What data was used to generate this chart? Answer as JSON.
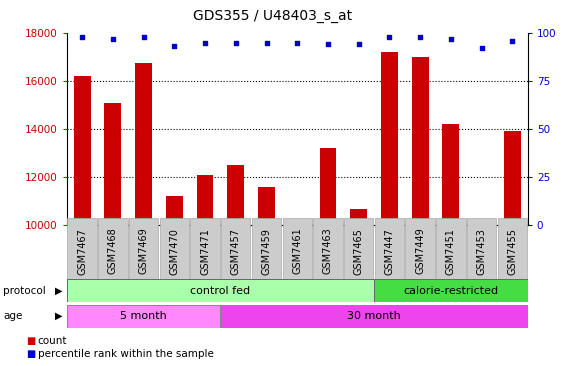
{
  "title": "GDS355 / U48403_s_at",
  "samples": [
    "GSM7467",
    "GSM7468",
    "GSM7469",
    "GSM7470",
    "GSM7471",
    "GSM7457",
    "GSM7459",
    "GSM7461",
    "GSM7463",
    "GSM7465",
    "GSM7447",
    "GSM7449",
    "GSM7451",
    "GSM7453",
    "GSM7455"
  ],
  "counts": [
    16200,
    15100,
    16750,
    11200,
    12100,
    12500,
    11600,
    10150,
    13200,
    10650,
    17200,
    17000,
    14200,
    10150,
    13900
  ],
  "percentile_ranks": [
    98,
    97,
    98,
    93,
    95,
    95,
    95,
    95,
    94,
    94,
    98,
    98,
    97,
    92,
    96
  ],
  "ylim_left": [
    10000,
    18000
  ],
  "ylim_right": [
    0,
    100
  ],
  "yticks_left": [
    10000,
    12000,
    14000,
    16000,
    18000
  ],
  "yticks_right": [
    0,
    25,
    50,
    75,
    100
  ],
  "bar_color": "#cc0000",
  "dot_color": "#0000cc",
  "bar_width": 0.55,
  "protocol_groups": [
    {
      "label": "control fed",
      "start": 0,
      "end": 10,
      "color": "#aaffaa"
    },
    {
      "label": "calorie-restricted",
      "start": 10,
      "end": 15,
      "color": "#44dd44"
    }
  ],
  "age_groups": [
    {
      "label": "5 month",
      "start": 0,
      "end": 5,
      "color": "#ff88ff"
    },
    {
      "label": "30 month",
      "start": 5,
      "end": 15,
      "color": "#ee44ee"
    }
  ],
  "protocol_label": "protocol",
  "age_label": "age",
  "legend_count_label": "count",
  "legend_pct_label": "percentile rank within the sample",
  "bar_bottom": 10000,
  "grid_yticks": [
    12000,
    14000,
    16000
  ],
  "tick_label_bg": "#cccccc",
  "tick_label_edge": "#aaaaaa"
}
